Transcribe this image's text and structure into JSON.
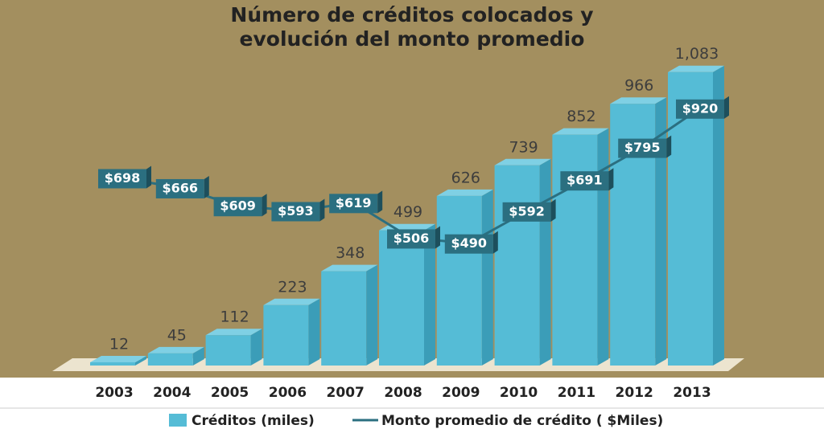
{
  "chart_data": {
    "type": "bar",
    "title": [
      "Número de créditos colocados y",
      "evolución del monto promedio"
    ],
    "categories": [
      "2003",
      "2004",
      "2005",
      "2006",
      "2007",
      "2008",
      "2009",
      "2010",
      "2011",
      "2012",
      "2013"
    ],
    "series": [
      {
        "name": "Créditos (miles)",
        "color": "#55bcd6",
        "values": [
          12,
          45,
          112,
          223,
          348,
          499,
          626,
          739,
          852,
          966,
          1083
        ],
        "value_labels": [
          "12",
          "45",
          "112",
          "223",
          "348",
          "499",
          "626",
          "739",
          "852",
          "966",
          "1,083"
        ]
      },
      {
        "name": "Monto promedio de crédito ( $Miles)",
        "type": "line",
        "axis": "y2",
        "color": "#2b6f80",
        "values": [
          698,
          666,
          609,
          593,
          619,
          506,
          490,
          592,
          691,
          795,
          920
        ],
        "value_labels": [
          "$698",
          "$666",
          "$609",
          "$593",
          "$619",
          "$506",
          "$490",
          "$592",
          "$691",
          "$795",
          "$920"
        ]
      }
    ],
    "ylim": [
      0,
      1100
    ],
    "y2lim": [
      100,
      1050
    ],
    "legend": "bottom"
  }
}
